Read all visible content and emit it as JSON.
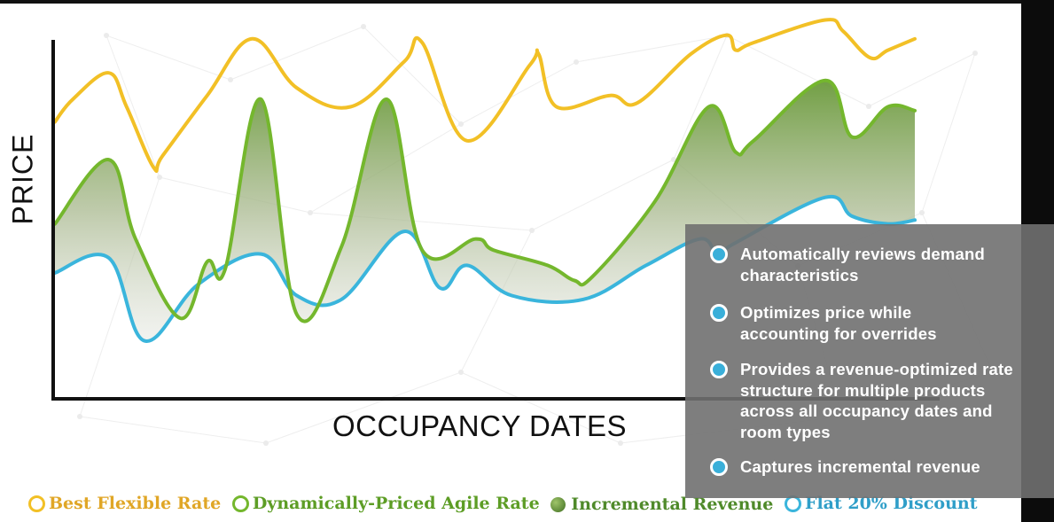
{
  "chart_data": {
    "type": "line",
    "xlabel": "OCCUPANCY DATES",
    "ylabel": "PRICE",
    "grid": false,
    "legend_placement": "bottom",
    "series": [
      {
        "name": "Best Flexible Rate",
        "color": "#f2c026",
        "points": [
          [
            0,
            71
          ],
          [
            2,
            77
          ],
          [
            6,
            84
          ],
          [
            8,
            75
          ],
          [
            11,
            59
          ],
          [
            12,
            62
          ],
          [
            17,
            78
          ],
          [
            22,
            93
          ],
          [
            27,
            80
          ],
          [
            33,
            75
          ],
          [
            39,
            87
          ],
          [
            41,
            92
          ],
          [
            46,
            66
          ],
          [
            53,
            86
          ],
          [
            54,
            89
          ],
          [
            56,
            75
          ],
          [
            62,
            78
          ],
          [
            65,
            76
          ],
          [
            71,
            89
          ],
          [
            75,
            94
          ],
          [
            76,
            90
          ],
          [
            78,
            92
          ],
          [
            86,
            98
          ],
          [
            88,
            95
          ],
          [
            91,
            88
          ],
          [
            93,
            90
          ],
          [
            96,
            93
          ]
        ]
      },
      {
        "name": "Dynamically-Priced Agile Rate",
        "color": "#74b72d",
        "points": [
          [
            0,
            44
          ],
          [
            6,
            61
          ],
          [
            9,
            40
          ],
          [
            14,
            19
          ],
          [
            17,
            34
          ],
          [
            19,
            32
          ],
          [
            23,
            77
          ],
          [
            27,
            20
          ],
          [
            32,
            38
          ],
          [
            37,
            77
          ],
          [
            41,
            37
          ],
          [
            47,
            40
          ],
          [
            49,
            37
          ],
          [
            55,
            33
          ],
          [
            58,
            29
          ],
          [
            60,
            30
          ],
          [
            67,
            50
          ],
          [
            73,
            75
          ],
          [
            76,
            63
          ],
          [
            78,
            66
          ],
          [
            86,
            82
          ],
          [
            89,
            67
          ],
          [
            93,
            75
          ],
          [
            96,
            74
          ]
        ]
      },
      {
        "name": "Incremental Revenue",
        "color": "#5f9a34",
        "points": []
      },
      {
        "name": "Flat 20% Discount",
        "color": "#3ab5dc",
        "points": [
          [
            0,
            31
          ],
          [
            6,
            35
          ],
          [
            10,
            13
          ],
          [
            16,
            28
          ],
          [
            23,
            36
          ],
          [
            27,
            25
          ],
          [
            32,
            24
          ],
          [
            39,
            42
          ],
          [
            43,
            27
          ],
          [
            46,
            33
          ],
          [
            51,
            25
          ],
          [
            59,
            24
          ],
          [
            66,
            33
          ],
          [
            72,
            40
          ],
          [
            74,
            36
          ],
          [
            76,
            39
          ],
          [
            86,
            51
          ],
          [
            89,
            46
          ],
          [
            93,
            44
          ],
          [
            96,
            45
          ]
        ]
      }
    ],
    "annotations": [
      "Automatically reviews demand characteristics",
      "Optimizes price while accounting for overrides",
      "Provides a revenue-optimized rate structure for multiple products across all occupancy dates and room types",
      "Captures incremental revenue"
    ]
  },
  "legend": {
    "items": [
      {
        "label": "Best Flexible Rate",
        "color": "#e0a626",
        "marker": "ring"
      },
      {
        "label": "Dynamically-Priced Agile Rate",
        "color": "#5d9d25",
        "marker": "ring"
      },
      {
        "label": "Incremental Revenue",
        "color": "#4f8a2a",
        "marker": "dot"
      },
      {
        "label": "Flat 20% Discount",
        "color": "#2f9ec8",
        "marker": "ring"
      }
    ]
  },
  "panel": {
    "bullets": [
      "Automatically reviews demand\ncharacteristics",
      "Optimizes price while\naccounting for overrides",
      "Provides a revenue-optimized rate\nstructure for multiple products\nacross all occupancy dates and\nroom types",
      "Captures incremental revenue"
    ]
  }
}
